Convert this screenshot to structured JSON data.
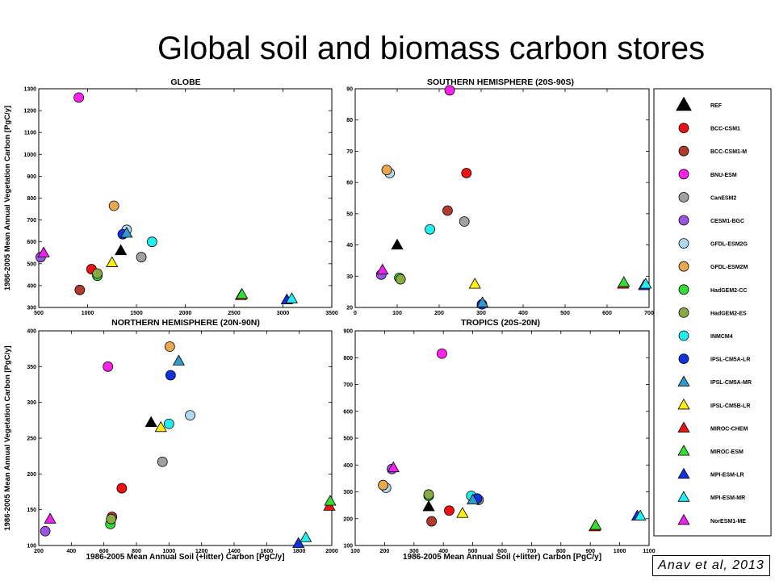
{
  "slide": {
    "title": "Global soil and biomass carbon stores",
    "citation": "Anav et al, 2013"
  },
  "models": [
    {
      "name": "REF",
      "marker": "triangle",
      "color": "#000000"
    },
    {
      "name": "BCC-CSM1",
      "marker": "circle",
      "color": "#ee1111"
    },
    {
      "name": "BCC-CSM1-M",
      "marker": "circle",
      "color": "#b03a2e"
    },
    {
      "name": "BNU-ESM",
      "marker": "circle",
      "color": "#ff22ee"
    },
    {
      "name": "CanESM2",
      "marker": "circle",
      "color": "#a0a0a0"
    },
    {
      "name": "CESM1-BGC",
      "marker": "circle",
      "color": "#9955dd"
    },
    {
      "name": "GFDL-ESM2G",
      "marker": "circle",
      "color": "#b0d8f0"
    },
    {
      "name": "GFDL-ESM2M",
      "marker": "circle",
      "color": "#e8a850"
    },
    {
      "name": "HadGEM2-CC",
      "marker": "circle",
      "color": "#33dd33"
    },
    {
      "name": "HadGEM2-ES",
      "marker": "circle",
      "color": "#88aa44"
    },
    {
      "name": "INMCM4",
      "marker": "circle",
      "color": "#22eeee"
    },
    {
      "name": "IPSL-CM5A-LR",
      "marker": "circle",
      "color": "#1133dd"
    },
    {
      "name": "IPSL-CM5A-MR",
      "marker": "triangle",
      "color": "#3399cc"
    },
    {
      "name": "IPSL-CM5B-LR",
      "marker": "triangle",
      "color": "#ffee11"
    },
    {
      "name": "MIROC-CHEM",
      "marker": "triangle",
      "color": "#ee1111"
    },
    {
      "name": "MIROC-ESM",
      "marker": "triangle",
      "color": "#33dd33"
    },
    {
      "name": "MPI-ESM-LR",
      "marker": "triangle",
      "color": "#1133dd"
    },
    {
      "name": "MPI-ESM-MR",
      "marker": "triangle",
      "color": "#22eeee"
    },
    {
      "name": "NorESM1-ME",
      "marker": "triangle",
      "color": "#ee22ee"
    }
  ],
  "chart_data": [
    {
      "type": "scatter",
      "title": "GLOBE",
      "xlabel": "",
      "ylabel": "1986-2005 Mean Annual Vegetation Carbon [PgC/y]",
      "xlim": [
        500,
        3500
      ],
      "ylim": [
        300,
        1300
      ],
      "xticks": [
        "500",
        "1000",
        "1500",
        "2000",
        "2500",
        "3000",
        "3500"
      ],
      "yticks": [
        "300",
        "400",
        "500",
        "600",
        "700",
        "800",
        "900",
        "1000",
        "1100",
        "1200",
        "1300"
      ],
      "points": [
        {
          "model": "REF",
          "x": 1340,
          "y": 560
        },
        {
          "model": "BCC-CSM1",
          "x": 1040,
          "y": 475
        },
        {
          "model": "BCC-CSM1-M",
          "x": 920,
          "y": 380
        },
        {
          "model": "BNU-ESM",
          "x": 910,
          "y": 1260
        },
        {
          "model": "CanESM2",
          "x": 1550,
          "y": 530
        },
        {
          "model": "CESM1-BGC",
          "x": 520,
          "y": 530
        },
        {
          "model": "GFDL-ESM2G",
          "x": 1400,
          "y": 655
        },
        {
          "model": "GFDL-ESM2M",
          "x": 1270,
          "y": 765
        },
        {
          "model": "HadGEM2-CC",
          "x": 1100,
          "y": 445
        },
        {
          "model": "HadGEM2-ES",
          "x": 1100,
          "y": 455
        },
        {
          "model": "INMCM4",
          "x": 1660,
          "y": 600
        },
        {
          "model": "IPSL-CM5A-LR",
          "x": 1360,
          "y": 635
        },
        {
          "model": "IPSL-CM5A-MR",
          "x": 1400,
          "y": 640
        },
        {
          "model": "IPSL-CM5B-LR",
          "x": 1250,
          "y": 505
        },
        {
          "model": "MIROC-CHEM",
          "x": 2570,
          "y": 355
        },
        {
          "model": "MIROC-ESM",
          "x": 2580,
          "y": 360
        },
        {
          "model": "MPI-ESM-LR",
          "x": 3040,
          "y": 335
        },
        {
          "model": "MPI-ESM-MR",
          "x": 3090,
          "y": 340
        },
        {
          "model": "NorESM1-ME",
          "x": 550,
          "y": 550
        }
      ]
    },
    {
      "type": "scatter",
      "title": "SOUTHERN HEMISPHERE (20S-90S)",
      "xlabel": "",
      "ylabel": "",
      "xlim": [
        0,
        700
      ],
      "ylim": [
        20,
        90
      ],
      "xticks": [
        "0",
        "100",
        "200",
        "300",
        "400",
        "500",
        "600",
        "700"
      ],
      "yticks": [
        "20",
        "30",
        "40",
        "50",
        "60",
        "70",
        "80",
        "90"
      ],
      "points": [
        {
          "model": "REF",
          "x": 100,
          "y": 40
        },
        {
          "model": "BCC-CSM1",
          "x": 265,
          "y": 63
        },
        {
          "model": "BCC-CSM1-M",
          "x": 220,
          "y": 51
        },
        {
          "model": "BNU-ESM",
          "x": 225,
          "y": 89.5
        },
        {
          "model": "CanESM2",
          "x": 260,
          "y": 47.5
        },
        {
          "model": "CESM1-BGC",
          "x": 62,
          "y": 30.5
        },
        {
          "model": "GFDL-ESM2G",
          "x": 82,
          "y": 63
        },
        {
          "model": "GFDL-ESM2M",
          "x": 75,
          "y": 64
        },
        {
          "model": "HadGEM2-CC",
          "x": 105,
          "y": 29.5
        },
        {
          "model": "HadGEM2-ES",
          "x": 108,
          "y": 29
        },
        {
          "model": "INMCM4",
          "x": 178,
          "y": 45
        },
        {
          "model": "IPSL-CM5A-LR",
          "x": 302,
          "y": 21
        },
        {
          "model": "IPSL-CM5A-MR",
          "x": 303,
          "y": 21.5
        },
        {
          "model": "IPSL-CM5B-LR",
          "x": 285,
          "y": 27.5
        },
        {
          "model": "MIROC-CHEM",
          "x": 638,
          "y": 27.5
        },
        {
          "model": "MIROC-ESM",
          "x": 640,
          "y": 28
        },
        {
          "model": "MPI-ESM-LR",
          "x": 688,
          "y": 27
        },
        {
          "model": "MPI-ESM-MR",
          "x": 692,
          "y": 27.5
        },
        {
          "model": "NorESM1-ME",
          "x": 65,
          "y": 32
        }
      ]
    },
    {
      "type": "scatter",
      "title": "NORTHERN HEMISPHERE (20N-90N)",
      "xlabel": "1986-2005 Mean Annual Soil (+litter) Carbon [PgC/y]",
      "ylabel": "1986-2005 Mean Annual Vegetation Carbon [PgC/y]",
      "xlim": [
        200,
        2000
      ],
      "ylim": [
        100,
        400
      ],
      "xticks": [
        "200",
        "400",
        "600",
        "800",
        "1000",
        "1200",
        "1400",
        "1600",
        "1800",
        "2000"
      ],
      "yticks": [
        "100",
        "150",
        "200",
        "250",
        "300",
        "350",
        "400"
      ],
      "points": [
        {
          "model": "REF",
          "x": 890,
          "y": 272
        },
        {
          "model": "BCC-CSM1",
          "x": 710,
          "y": 180
        },
        {
          "model": "BCC-CSM1-M",
          "x": 650,
          "y": 140
        },
        {
          "model": "BNU-ESM",
          "x": 625,
          "y": 350
        },
        {
          "model": "CanESM2",
          "x": 960,
          "y": 217
        },
        {
          "model": "CESM1-BGC",
          "x": 240,
          "y": 120
        },
        {
          "model": "GFDL-ESM2G",
          "x": 1130,
          "y": 282
        },
        {
          "model": "GFDL-ESM2M",
          "x": 1005,
          "y": 378
        },
        {
          "model": "HadGEM2-CC",
          "x": 640,
          "y": 130
        },
        {
          "model": "HadGEM2-ES",
          "x": 645,
          "y": 137
        },
        {
          "model": "INMCM4",
          "x": 1000,
          "y": 270
        },
        {
          "model": "IPSL-CM5A-LR",
          "x": 1010,
          "y": 338
        },
        {
          "model": "IPSL-CM5A-MR",
          "x": 1060,
          "y": 358
        },
        {
          "model": "IPSL-CM5B-LR",
          "x": 950,
          "y": 265
        },
        {
          "model": "MIROC-CHEM",
          "x": 1985,
          "y": 155
        },
        {
          "model": "MIROC-ESM",
          "x": 1990,
          "y": 162
        },
        {
          "model": "MPI-ESM-LR",
          "x": 1795,
          "y": 103
        },
        {
          "model": "MPI-ESM-MR",
          "x": 1840,
          "y": 111
        },
        {
          "model": "NorESM1-ME",
          "x": 270,
          "y": 137
        }
      ]
    },
    {
      "type": "scatter",
      "title": "TROPICS (20S-20N)",
      "xlabel": "1986-2005 Mean Annual Soil (+litter) Carbon [PgC/y]",
      "ylabel": "",
      "xlim": [
        100,
        1100
      ],
      "ylim": [
        100,
        900
      ],
      "xticks": [
        "100",
        "200",
        "300",
        "400",
        "500",
        "600",
        "700",
        "800",
        "900",
        "1000",
        "1100"
      ],
      "yticks": [
        "100",
        "200",
        "300",
        "400",
        "500",
        "600",
        "700",
        "800",
        "900"
      ],
      "points": [
        {
          "model": "REF",
          "x": 350,
          "y": 245
        },
        {
          "model": "BCC-CSM1",
          "x": 420,
          "y": 230
        },
        {
          "model": "BCC-CSM1-M",
          "x": 360,
          "y": 190
        },
        {
          "model": "BNU-ESM",
          "x": 395,
          "y": 815
        },
        {
          "model": "CanESM2",
          "x": 520,
          "y": 270
        },
        {
          "model": "CESM1-BGC",
          "x": 225,
          "y": 385
        },
        {
          "model": "GFDL-ESM2G",
          "x": 205,
          "y": 315
        },
        {
          "model": "GFDL-ESM2M",
          "x": 195,
          "y": 325
        },
        {
          "model": "HadGEM2-CC",
          "x": 350,
          "y": 285
        },
        {
          "model": "HadGEM2-ES",
          "x": 350,
          "y": 290
        },
        {
          "model": "INMCM4",
          "x": 495,
          "y": 285
        },
        {
          "model": "IPSL-CM5A-LR",
          "x": 515,
          "y": 275
        },
        {
          "model": "IPSL-CM5A-MR",
          "x": 500,
          "y": 270
        },
        {
          "model": "IPSL-CM5B-LR",
          "x": 465,
          "y": 220
        },
        {
          "model": "MIROC-CHEM",
          "x": 915,
          "y": 170
        },
        {
          "model": "MIROC-ESM",
          "x": 918,
          "y": 175
        },
        {
          "model": "MPI-ESM-LR",
          "x": 1060,
          "y": 210
        },
        {
          "model": "MPI-ESM-MR",
          "x": 1070,
          "y": 210
        },
        {
          "model": "NorESM1-ME",
          "x": 230,
          "y": 390
        }
      ]
    }
  ]
}
